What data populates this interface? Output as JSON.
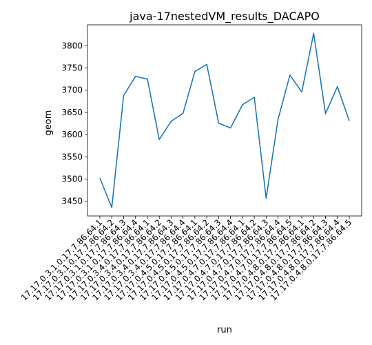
{
  "chart_data": {
    "type": "line",
    "title": "java-17nestedVM_results_DACAPO",
    "xlabel": "run",
    "ylabel": "geom",
    "ylim": [
      3417,
      3847
    ],
    "yticks": [
      3450,
      3500,
      3550,
      3600,
      3650,
      3700,
      3750,
      3800
    ],
    "grid": false,
    "line_color": "#1f77b4",
    "categories": [
      "17.17.0.3.1.0.17.7.86.64.1",
      "17.17.0.3.1.0.17.7.86.64.2",
      "17.17.0.3.1.0.17.7.86.64.3",
      "17.17.0.3.1.0.17.7.86.64.4",
      "17.17.0.3.4.0.17.7.86.64.1",
      "17.17.0.3.4.0.17.7.86.64.2",
      "17.17.0.3.4.0.17.7.86.64.3",
      "17.17.0.3.4.0.17.7.86.64.4",
      "17.17.0.4.5.0.17.7.86.64.1",
      "17.17.0.4.5.0.17.7.86.64.2",
      "17.17.0.4.5.0.17.7.86.64.3",
      "17.17.0.4.5.0.17.7.86.64.4",
      "17.17.0.4.7.0.17.7.86.64.1",
      "17.17.0.4.7.0.17.7.86.64.2",
      "17.17.0.4.7.0.17.7.86.64.3",
      "17.17.0.4.7.0.17.7.86.64.4",
      "17.17.0.4.7.0.17.7.86.64.5",
      "17.17.0.4.8.0.17.7.86.64.1",
      "17.17.0.4.8.0.17.7.86.64.2",
      "17.17.0.4.8.0.17.7.86.64.3",
      "17.17.0.4.8.0.17.7.86.64.4",
      "17.17.0.4.8.0.17.7.86.64.5"
    ],
    "values": [
      3502,
      3436,
      3688,
      3731,
      3725,
      3589,
      3630,
      3648,
      3742,
      3758,
      3626,
      3615,
      3667,
      3684,
      3457,
      3634,
      3734,
      3696,
      3828,
      3647,
      3708,
      3631
    ]
  }
}
